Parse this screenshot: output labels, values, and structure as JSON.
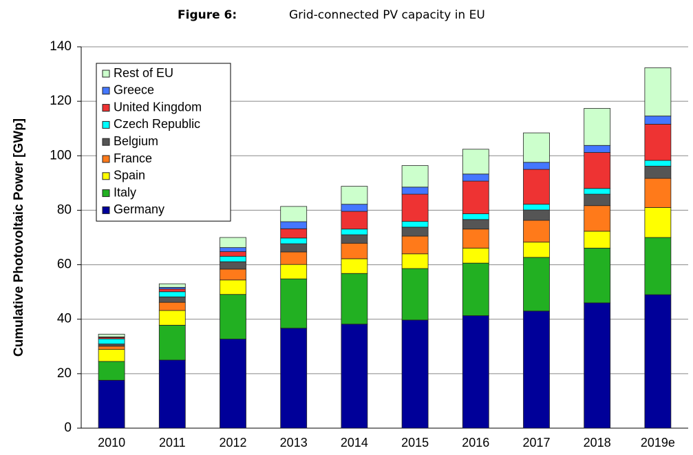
{
  "chart_data": {
    "type": "stacked_bar",
    "figure_label": "Figure 6:",
    "title": "Grid-connected PV capacity in EU",
    "y_label": "Cumulative Photovoltaic Power [GWp]",
    "categories": [
      "2010",
      "2011",
      "2012",
      "2013",
      "2014",
      "2015",
      "2016",
      "2017",
      "2018",
      "2019e"
    ],
    "series": [
      {
        "name": "Germany",
        "color": "#000099",
        "values": [
          17.6,
          25.0,
          32.7,
          36.7,
          38.2,
          39.7,
          41.3,
          43.0,
          46.0,
          49.0
        ]
      },
      {
        "name": "Italy",
        "color": "#22b022",
        "values": [
          6.9,
          12.8,
          16.4,
          18.1,
          18.6,
          18.9,
          19.3,
          19.7,
          20.1,
          21.0
        ]
      },
      {
        "name": "Spain",
        "color": "#ffff00",
        "values": [
          4.4,
          5.4,
          5.3,
          5.3,
          5.4,
          5.4,
          5.5,
          5.6,
          6.2,
          11.0
        ]
      },
      {
        "name": "France",
        "color": "#ff7a1a",
        "values": [
          1.2,
          3.0,
          4.0,
          4.6,
          5.7,
          6.5,
          7.0,
          8.0,
          9.4,
          10.7
        ]
      },
      {
        "name": "Belgium",
        "color": "#555555",
        "values": [
          0.8,
          2.0,
          2.7,
          3.0,
          3.1,
          3.3,
          3.5,
          3.8,
          4.2,
          4.5
        ]
      },
      {
        "name": "Czech Republic",
        "color": "#00ffff",
        "values": [
          1.9,
          1.9,
          2.0,
          2.1,
          2.1,
          2.1,
          2.1,
          2.1,
          2.1,
          2.1
        ]
      },
      {
        "name": "United Kingdom",
        "color": "#ee3333",
        "values": [
          0.5,
          1.0,
          1.7,
          3.4,
          6.5,
          10.0,
          12.0,
          12.8,
          13.2,
          13.3
        ]
      },
      {
        "name": "Greece",
        "color": "#4477ff",
        "values": [
          0.2,
          0.6,
          1.5,
          2.6,
          2.6,
          2.6,
          2.6,
          2.6,
          2.6,
          3.0
        ]
      },
      {
        "name": "Rest of EU",
        "color": "#ccffcc",
        "values": [
          1.0,
          1.3,
          3.7,
          5.6,
          6.6,
          7.9,
          9.1,
          10.8,
          13.6,
          17.7
        ]
      }
    ],
    "ylim": [
      0,
      140
    ],
    "yticks": [
      0,
      20,
      40,
      60,
      80,
      100,
      120,
      140
    ],
    "grid": true
  }
}
